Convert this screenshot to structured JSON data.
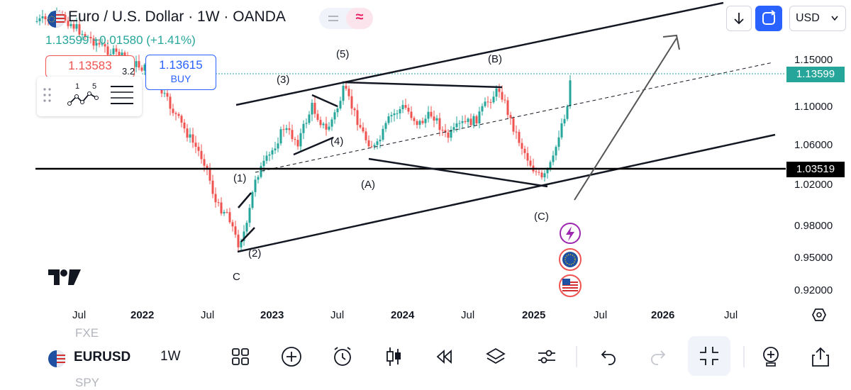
{
  "header": {
    "title": "Euro / U.S. Dollar · 1W · OANDA",
    "last": "1.13599",
    "change": "+0.01580",
    "change_pct": "(+1.41%)",
    "ohlc_line": "1.13599 +0.01580 (+1.41%)"
  },
  "trade": {
    "sell_price": "1.13583",
    "spread": "3.2",
    "buy_price": "1.13615",
    "buy_label": "BUY"
  },
  "top_controls": {
    "currency": "USD"
  },
  "price_axis": {
    "labels": [
      "1.15000",
      "1.10000",
      "1.06000",
      "1.02000",
      "0.98000",
      "0.95000",
      "0.92000"
    ],
    "current_price_tag": "1.13599",
    "hline_tag": "1.03519"
  },
  "time_axis": {
    "labels": [
      {
        "text": "Jul",
        "bold": false
      },
      {
        "text": "2022",
        "bold": true
      },
      {
        "text": "Jul",
        "bold": false
      },
      {
        "text": "2023",
        "bold": true
      },
      {
        "text": "Jul",
        "bold": false
      },
      {
        "text": "2024",
        "bold": true
      },
      {
        "text": "Jul",
        "bold": false
      },
      {
        "text": "2025",
        "bold": true
      },
      {
        "text": "Jul",
        "bold": false
      },
      {
        "text": "2026",
        "bold": true
      },
      {
        "text": "Jul",
        "bold": false
      }
    ]
  },
  "annotations": [
    "(1)",
    "(2)",
    "(3)",
    "(4)",
    "(5)",
    "(A)",
    "(B)",
    "(C)",
    "C"
  ],
  "bottom_bar": {
    "symbol": "EURUSD",
    "interval": "1W",
    "ghost_above": "FXE",
    "ghost_below": "SPY"
  },
  "colors": {
    "up": "#26a69a",
    "down": "#ef5350",
    "accent": "#2962ff",
    "hline": "#000000"
  },
  "icons": [
    "euro-dollar-flag-icon",
    "lightning-icon",
    "eu-flag-icon",
    "us-flag-icon",
    "tradingview-logo-icon"
  ]
}
